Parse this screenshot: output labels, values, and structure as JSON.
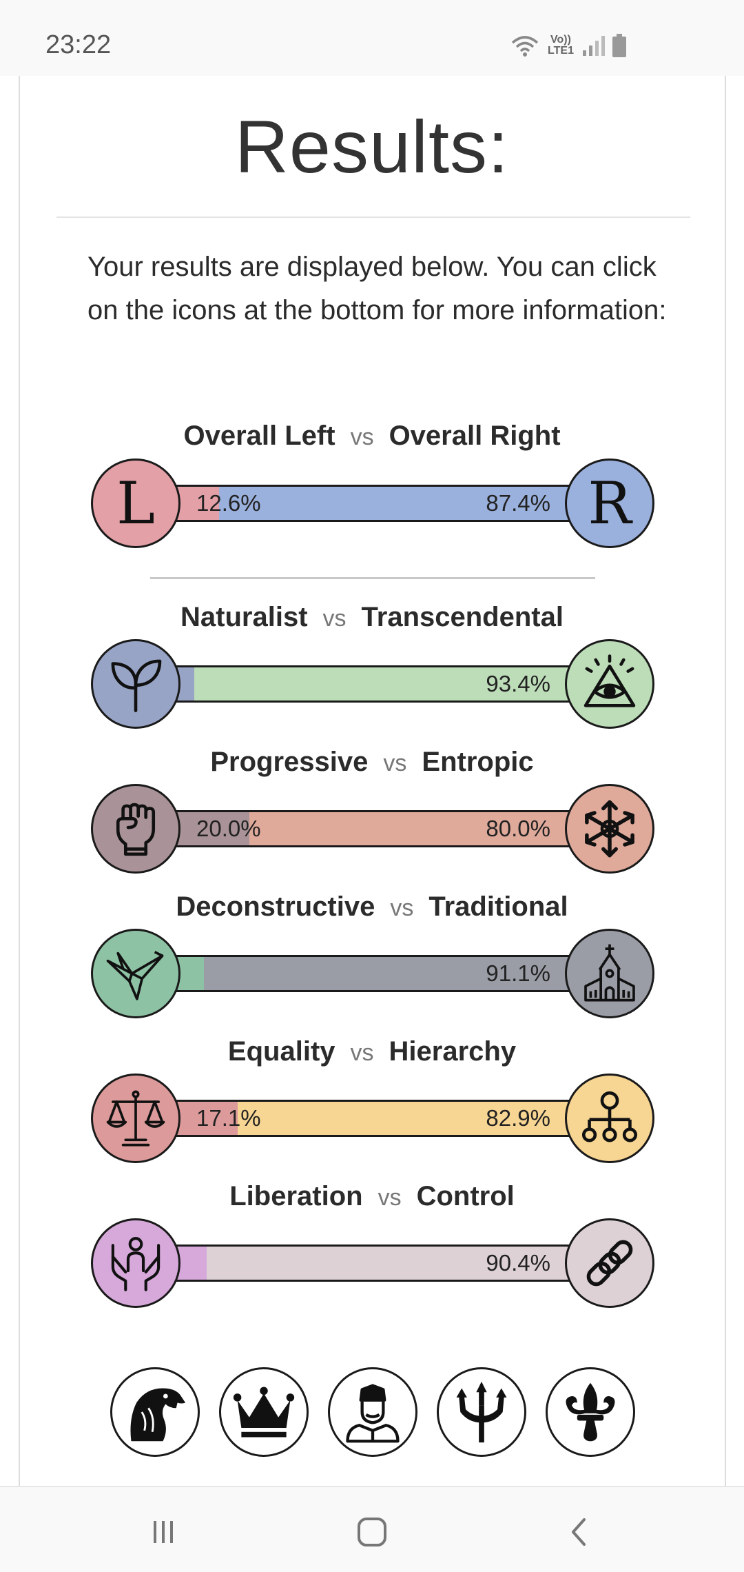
{
  "status_bar": {
    "time": "23:22",
    "lte_label": "Vo)) LTE1",
    "icons": [
      "wifi-icon",
      "signal-icon",
      "battery-icon"
    ]
  },
  "page": {
    "title": "Results:",
    "intro": "Your results are displayed below. You can click on the icons at the bottom for more information:",
    "vs_label": "vs"
  },
  "axes": [
    {
      "left_label": "Overall Left",
      "right_label": "Overall Right",
      "left_percent": 12.6,
      "right_percent": 87.4,
      "left_pct_text": "12.6%",
      "right_pct_text": "87.4%",
      "left_icon": "L",
      "right_icon": "R",
      "left_color": "#e3a0a6",
      "right_color": "#9ab0dd"
    },
    {
      "left_label": "Naturalist",
      "right_label": "Transcendental",
      "left_percent": 6.6,
      "right_percent": 93.4,
      "left_pct_text": "",
      "right_pct_text": "93.4%",
      "left_icon": "sprout-icon",
      "right_icon": "eye-pyramid-icon",
      "left_color": "#98a4c6",
      "right_color": "#bcddb8"
    },
    {
      "left_label": "Progressive",
      "right_label": "Entropic",
      "left_percent": 20.0,
      "right_percent": 80.0,
      "left_pct_text": "20.0%",
      "right_pct_text": "80.0%",
      "left_icon": "fist-icon",
      "right_icon": "chaos-star-icon",
      "left_color": "#a99398",
      "right_color": "#e0aa9b"
    },
    {
      "left_label": "Deconstructive",
      "right_label": "Traditional",
      "left_percent": 8.9,
      "right_percent": 91.1,
      "left_pct_text": "",
      "right_pct_text": "91.1%",
      "left_icon": "origami-bird-icon",
      "right_icon": "church-icon",
      "left_color": "#8ec2a4",
      "right_color": "#9a9da6"
    },
    {
      "left_label": "Equality",
      "right_label": "Hierarchy",
      "left_percent": 17.1,
      "right_percent": 82.9,
      "left_pct_text": "17.1%",
      "right_pct_text": "82.9%",
      "left_icon": "scales-icon",
      "right_icon": "hierarchy-icon",
      "left_color": "#dd9a9a",
      "right_color": "#f7d592"
    },
    {
      "left_label": "Liberation",
      "right_label": "Control",
      "left_percent": 9.6,
      "right_percent": 90.4,
      "left_pct_text": "",
      "right_pct_text": "90.4%",
      "left_icon": "raised-hands-icon",
      "right_icon": "chain-icon",
      "left_color": "#d6a9da",
      "right_color": "#ddd1d6"
    }
  ],
  "ideology_icons": [
    "eagle-icon",
    "crown-icon",
    "monarch-bust-icon",
    "trident-icon",
    "fleur-de-lis-icon"
  ],
  "nav": [
    "recent-apps-icon",
    "home-icon",
    "back-icon"
  ]
}
